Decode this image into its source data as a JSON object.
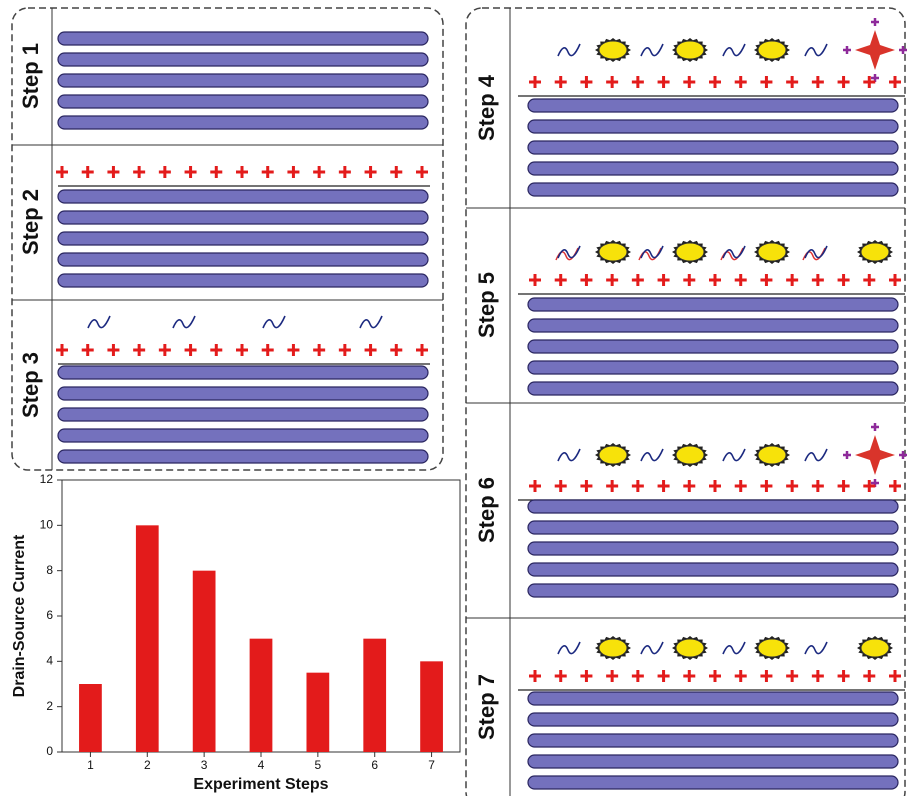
{
  "steps": [
    "Step 1",
    "Step 2",
    "Step 3",
    "Step 4",
    "Step 5",
    "Step 6",
    "Step 7"
  ],
  "chart_data": {
    "type": "bar",
    "x_label": "Experiment Steps",
    "y_label": "Drain-Source Current",
    "categories": [
      "1",
      "2",
      "3",
      "4",
      "5",
      "6",
      "7"
    ],
    "values": [
      3,
      10,
      8,
      5,
      3.5,
      5,
      4
    ],
    "color": "#e31b1b",
    "ylim": [
      0,
      12
    ],
    "yticks": [
      0,
      2,
      4,
      6,
      8,
      10,
      12
    ]
  }
}
